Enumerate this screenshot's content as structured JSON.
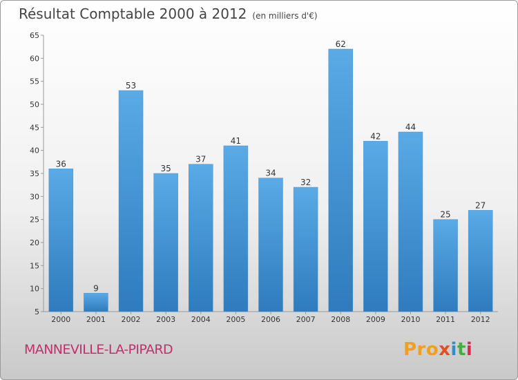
{
  "chart_data": {
    "type": "bar",
    "title": "Résultat Comptable 2000 à 2012",
    "subtitle": "(en milliers d'€)",
    "categories": [
      "2000",
      "2001",
      "2002",
      "2003",
      "2004",
      "2005",
      "2006",
      "2007",
      "2008",
      "2009",
      "2010",
      "2011",
      "2012"
    ],
    "values": [
      36,
      9,
      53,
      35,
      37,
      41,
      34,
      32,
      62,
      42,
      44,
      25,
      27
    ],
    "ylim": [
      5,
      65
    ],
    "yticks": [
      5,
      10,
      15,
      20,
      25,
      30,
      35,
      40,
      45,
      50,
      55,
      60,
      65
    ],
    "xlabel": "",
    "ylabel": "",
    "grid": false
  },
  "footer": {
    "commune": "MANNEVILLE-LA-PIPARD",
    "logo": [
      "Pro",
      "x",
      "i",
      "t",
      "i"
    ]
  },
  "colors": {
    "bar_top": "#5aaae6",
    "bar_bottom": "#2f7bbd",
    "commune": "#c0306a"
  }
}
